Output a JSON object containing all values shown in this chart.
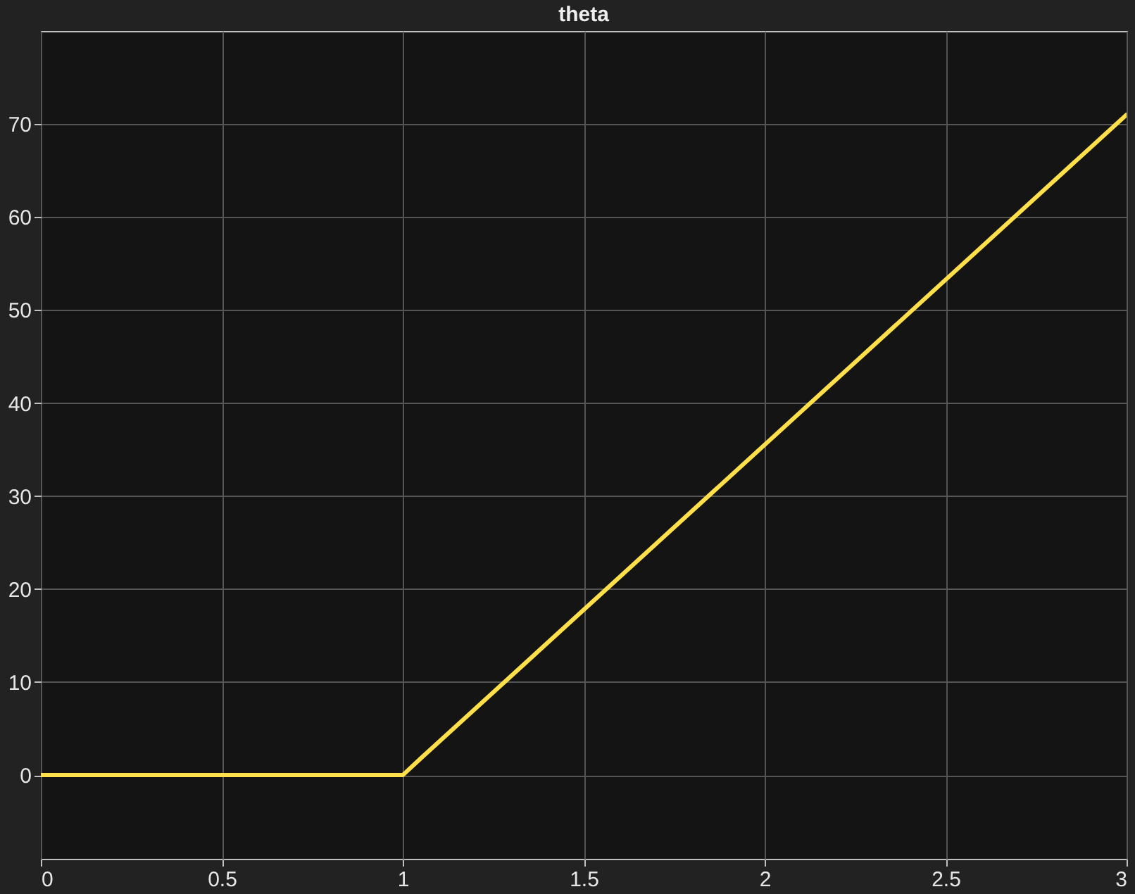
{
  "chart_data": {
    "type": "line",
    "title": "theta",
    "x": [
      0,
      1,
      1.05,
      3
    ],
    "series": [
      {
        "color": "#ffdf4a",
        "values": [
          0,
          0,
          1.8,
          71
        ]
      }
    ],
    "xlim": [
      0,
      3
    ],
    "xticks": [
      0,
      0.5,
      1,
      1.5,
      2,
      2.5,
      3
    ],
    "ylim": [
      -9,
      80
    ],
    "yticks": [
      0,
      10,
      20,
      30,
      40,
      50,
      60,
      70
    ],
    "grid": true,
    "marker": "none",
    "line_style": "solid"
  }
}
